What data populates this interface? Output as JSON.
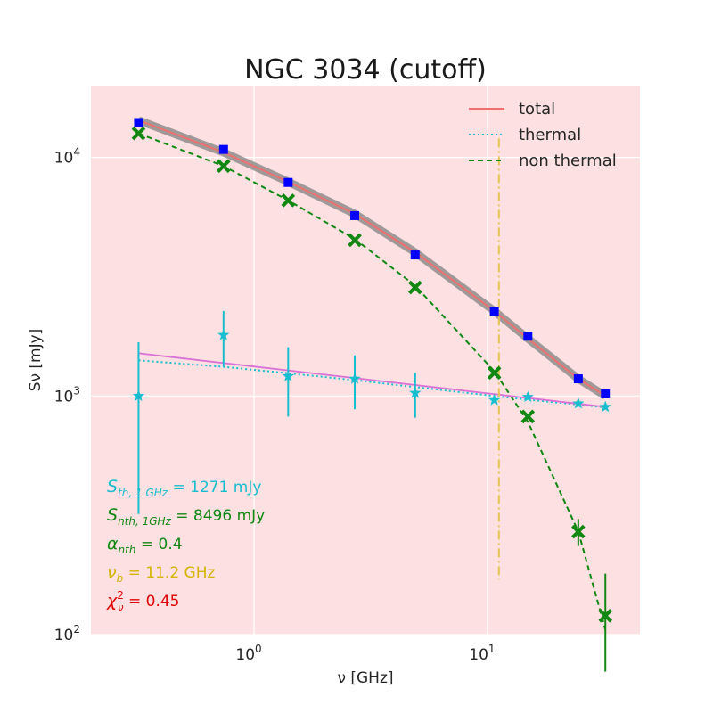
{
  "chart_data": {
    "type": "line",
    "title": "NGC 3034 (cutoff)",
    "xlabel": "ν [GHz]",
    "ylabel": "Sν [mJy]",
    "xscale": "log",
    "yscale": "log",
    "xlim": [
      0.2,
      45
    ],
    "ylim": [
      100,
      20000
    ],
    "x_ticks": [
      {
        "value": 1,
        "base": "10",
        "exp": "0"
      },
      {
        "value": 10,
        "base": "10",
        "exp": "1"
      }
    ],
    "y_ticks": [
      {
        "value": 100,
        "base": "10",
        "exp": "2"
      },
      {
        "value": 1000,
        "base": "10",
        "exp": "3"
      },
      {
        "value": 10000,
        "base": "10",
        "exp": "4"
      }
    ],
    "grid": true,
    "legend_position": "top-right",
    "legend": [
      {
        "label": "total",
        "style": "solid",
        "color": "#f07070"
      },
      {
        "label": "thermal",
        "style": "dotted",
        "color": "#17becf"
      },
      {
        "label": "non thermal",
        "style": "dashed",
        "color": "#118811"
      }
    ],
    "observed": {
      "name": "total observed",
      "color": "#0000ff",
      "x": [
        0.32,
        0.74,
        1.4,
        2.7,
        4.9,
        10.7,
        14.9,
        24.5,
        32.0
      ],
      "y": [
        14000,
        10800,
        7850,
        5700,
        3900,
        2250,
        1780,
        1180,
        1020
      ]
    },
    "series": [
      {
        "name": "total",
        "color": "#f07070",
        "x": [
          0.32,
          0.74,
          1.4,
          2.7,
          4.9,
          10.7,
          14.9,
          24.5,
          32.0
        ],
        "y": [
          14300,
          10500,
          7900,
          5800,
          4000,
          2270,
          1740,
          1180,
          1000
        ]
      },
      {
        "name": "thermal",
        "color": "#17becf",
        "x": [
          0.32,
          0.74,
          1.4,
          2.7,
          4.9,
          10.7,
          14.9,
          24.5,
          32.0
        ],
        "y": [
          1410,
          1325,
          1245,
          1165,
          1090,
          1000,
          965,
          920,
          895
        ]
      },
      {
        "name": "non thermal",
        "color": "#118811",
        "x": [
          0.32,
          0.74,
          1.4,
          2.7,
          4.9,
          10.7,
          14.9,
          24.5,
          32.0
        ],
        "y": [
          12600,
          9200,
          6600,
          4550,
          2900,
          1270,
          780,
          270,
          105
        ]
      },
      {
        "name": "thermal model (magenta)",
        "color": "#da70d6",
        "x": [
          0.32,
          32.0
        ],
        "y": [
          1510,
          900
        ]
      }
    ],
    "thermal_points": {
      "color": "#17becf",
      "x": [
        0.32,
        0.74,
        1.4,
        2.7,
        4.9,
        10.7,
        14.9,
        24.5,
        32.0
      ],
      "y": [
        1000,
        1800,
        1210,
        1180,
        1030,
        960,
        990,
        930,
        900
      ],
      "err_low": [
        680,
        470,
        390,
        300,
        220,
        0,
        0,
        0,
        0
      ],
      "err_high": [
        680,
        470,
        390,
        300,
        220,
        0,
        0,
        0,
        0
      ]
    },
    "nonthermal_points": {
      "color": "#118811",
      "x": [
        0.32,
        0.74,
        1.4,
        2.7,
        4.9,
        10.7,
        14.9,
        24.5,
        32.0
      ],
      "y": [
        12600,
        9200,
        6600,
        4500,
        2850,
        1250,
        820,
        270,
        120
      ],
      "err_low": [
        0,
        0,
        0,
        0,
        0,
        0,
        0,
        35,
        50
      ],
      "err_high": [
        0,
        0,
        0,
        0,
        0,
        0,
        0,
        35,
        60
      ]
    },
    "break_frequency_line": {
      "x": 11.2,
      "y_range": [
        170,
        12000
      ],
      "color": "#e5c453"
    },
    "annotations": [
      {
        "text": "S",
        "sub": "th, 1 GHz",
        "rest": " = 1271 mJy",
        "color": "#17becf"
      },
      {
        "text": "S",
        "sub": "nth, 1GHz",
        "rest": " = 8496 mJy",
        "color": "#118811"
      },
      {
        "text": "α",
        "sub": "nth",
        "rest": " = 0.4",
        "color": "#118811"
      },
      {
        "text": "ν",
        "sub": "b",
        "rest": " = 11.2 GHz",
        "color": "#d4b400"
      },
      {
        "text": "χ",
        "sub": "ν",
        "sup": "2",
        "rest": " = 0.45",
        "color": "#e00000"
      }
    ]
  }
}
